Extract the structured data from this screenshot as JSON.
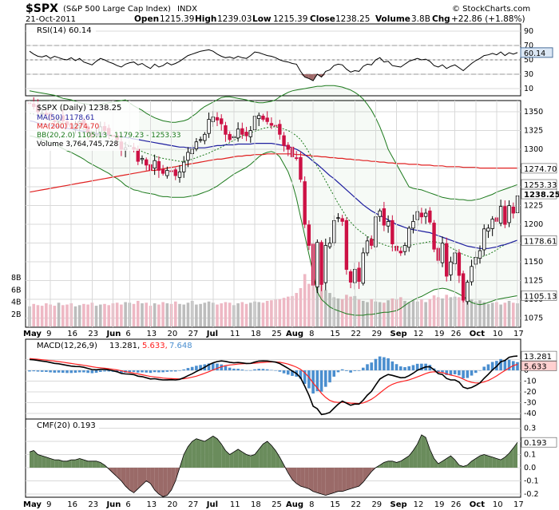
{
  "header": {
    "symbol": "$SPX",
    "name": "(S&P 500 Large Cap Index)",
    "exchange": "INDX",
    "date": "21-Oct-2011",
    "open_label": "Open",
    "open": "1215.39",
    "high_label": "High",
    "high": "1239.03",
    "low_label": "Low",
    "low": "1215.39",
    "close_label": "Close",
    "close": "1238.25",
    "volume_label": "Volume",
    "volume": "3.8B",
    "chg_label": "Chg",
    "chg": "+22.86 (+1.88%)",
    "copyright": "© StockCharts.com"
  },
  "colors": {
    "up": "#000000",
    "down": "#cc1144",
    "ma50": "#1f1fa0",
    "ma200": "#e02020",
    "bb": "#1d7a1d",
    "macd": "#000000",
    "signal": "#ff2020",
    "hist": "#4a8ecf",
    "cmf_pos": "#6a8c5c",
    "cmf_neg": "#9a6a68",
    "vol_up": "#bdbdbd",
    "vol_down": "#eeb8c4",
    "rsi_line": "#000000",
    "rsi_label_bg": "#dce8f5"
  },
  "rsi": {
    "legend": "RSI(14) 60.14",
    "value_label": "60.14",
    "value": 60.14,
    "ticks": [
      "90",
      "70",
      "50",
      "30",
      "10"
    ]
  },
  "price": {
    "legend_title": "$SPX (Daily) 1238.25",
    "legend_ma50": "MA(50) 1178.61",
    "legend_ma200": "MA(200) 1274.70",
    "legend_bb": "BB(20,2.0) 1105.13 - 1179.23 - 1253.33",
    "legend_volume": "Volume 3,764,745,728",
    "ticks": [
      "1350",
      "1325",
      "1300",
      "1275",
      "1250",
      "1225",
      "1200",
      "1175",
      "1150",
      "1125",
      "1100",
      "1075"
    ],
    "volume_ticks": [
      "8B",
      "6B",
      "4B",
      "2B"
    ],
    "labels": {
      "bb_upper": "1253.33",
      "ma200": "1274.70",
      "close": "1238.25",
      "ma50": "1178.61",
      "bb_lower": "1105.13"
    }
  },
  "macd": {
    "legend_name": "MACD(12,26,9)",
    "legend_macd": "13.281,",
    "legend_signal": "5.633,",
    "legend_hist": "7.648",
    "value_label": "13.281",
    "signal_label": "5.633",
    "ticks": [
      "10",
      "0",
      "-10",
      "-20",
      "-30",
      "-40"
    ]
  },
  "cmf": {
    "legend": "CMF(20) 0.193",
    "value_label": "0.193",
    "ticks": [
      "0.3",
      "0.2",
      "0.1",
      "0.0",
      "-0.1",
      "-0.2"
    ]
  },
  "x_axis": [
    {
      "label": "May",
      "bold": true
    },
    {
      "label": "9"
    },
    {
      "label": "16"
    },
    {
      "label": "23"
    },
    {
      "label": "Jun",
      "bold": true
    },
    {
      "label": "6"
    },
    {
      "label": "13"
    },
    {
      "label": "20"
    },
    {
      "label": "27"
    },
    {
      "label": "Jul",
      "bold": true
    },
    {
      "label": "11"
    },
    {
      "label": "18"
    },
    {
      "label": "25"
    },
    {
      "label": "Aug",
      "bold": true
    },
    {
      "label": "8"
    },
    {
      "label": "15"
    },
    {
      "label": "22"
    },
    {
      "label": "29"
    },
    {
      "label": "Sep",
      "bold": true
    },
    {
      "label": "12"
    },
    {
      "label": "19"
    },
    {
      "label": "26"
    },
    {
      "label": "Oct",
      "bold": true
    },
    {
      "label": "10"
    },
    {
      "label": "17"
    }
  ],
  "chart_data": {
    "type": "candlestick",
    "title": "$SPX (S&P 500 Large Cap Index) Daily",
    "date_range": "May 2011 - 21-Oct-2011",
    "ylim": [
      1063,
      1365
    ],
    "closes": [
      1361,
      1357,
      1350,
      1348,
      1346,
      1340,
      1337,
      1342,
      1338,
      1333,
      1330,
      1332,
      1337,
      1333,
      1322,
      1316,
      1320,
      1330,
      1325,
      1320,
      1317,
      1313,
      1300,
      1302,
      1305,
      1300,
      1284,
      1288,
      1279,
      1272,
      1285,
      1272,
      1268,
      1272,
      1271,
      1265,
      1270,
      1283,
      1296,
      1300,
      1310,
      1313,
      1320,
      1340,
      1343,
      1339,
      1334,
      1320,
      1313,
      1317,
      1327,
      1320,
      1318,
      1325,
      1344,
      1345,
      1340,
      1337,
      1332,
      1331,
      1320,
      1305,
      1300,
      1290,
      1288,
      1260,
      1200,
      1172,
      1119,
      1176,
      1120,
      1172,
      1175,
      1205,
      1209,
      1204,
      1140,
      1123,
      1140,
      1124,
      1162,
      1178,
      1172,
      1210,
      1218,
      1199,
      1204,
      1174,
      1165,
      1162,
      1172,
      1195,
      1204,
      1217,
      1210,
      1215,
      1203,
      1167,
      1152,
      1175,
      1131,
      1150,
      1162,
      1132,
      1099,
      1123,
      1144,
      1156,
      1165,
      1194,
      1195,
      1207,
      1204,
      1224,
      1200,
      1225,
      1215,
      1238
    ],
    "ma50": [
      1338,
      1337,
      1335,
      1334,
      1333,
      1332,
      1331,
      1330,
      1329,
      1328,
      1327,
      1326,
      1325,
      1324,
      1323,
      1322,
      1321,
      1321,
      1320,
      1319,
      1318,
      1318,
      1317,
      1316,
      1315,
      1314,
      1313,
      1312,
      1311,
      1310,
      1309,
      1308,
      1307,
      1306,
      1305,
      1304,
      1303,
      1303,
      1302,
      1302,
      1302,
      1302,
      1302,
      1303,
      1304,
      1305,
      1305,
      1306,
      1306,
      1306,
      1307,
      1307,
      1307,
      1307,
      1308,
      1308,
      1308,
      1308,
      1308,
      1307,
      1306,
      1305,
      1304,
      1302,
      1300,
      1297,
      1293,
      1289,
      1284,
      1280,
      1275,
      1270,
      1265,
      1261,
      1256,
      1251,
      1246,
      1241,
      1236,
      1231,
      1226,
      1222,
      1218,
      1215,
      1212,
      1209,
      1206,
      1203,
      1200,
      1198,
      1196,
      1194,
      1193,
      1192,
      1191,
      1190,
      1189,
      1187,
      1185,
      1183,
      1181,
      1179,
      1177,
      1175,
      1173,
      1171,
      1170,
      1169,
      1168,
      1168,
      1168,
      1169,
      1170,
      1172,
      1173,
      1175,
      1177,
      1179
    ],
    "ma200": [
      1243,
      1244,
      1245,
      1246,
      1247,
      1248,
      1249,
      1250,
      1251,
      1252,
      1253,
      1254,
      1255,
      1256,
      1257,
      1258,
      1259,
      1260,
      1261,
      1262,
      1263,
      1264,
      1265,
      1266,
      1267,
      1268,
      1269,
      1270,
      1271,
      1272,
      1272,
      1273,
      1274,
      1275,
      1276,
      1277,
      1278,
      1279,
      1280,
      1281,
      1282,
      1283,
      1284,
      1285,
      1286,
      1287,
      1287,
      1288,
      1289,
      1290,
      1291,
      1291,
      1292,
      1292,
      1293,
      1293,
      1293,
      1294,
      1294,
      1294,
      1294,
      1294,
      1294,
      1294,
      1293,
      1293,
      1292,
      1292,
      1291,
      1291,
      1290,
      1290,
      1289,
      1289,
      1288,
      1288,
      1287,
      1287,
      1286,
      1286,
      1285,
      1285,
      1284,
      1284,
      1283,
      1283,
      1282,
      1282,
      1281,
      1281,
      1281,
      1280,
      1280,
      1280,
      1279,
      1279,
      1279,
      1278,
      1278,
      1278,
      1277,
      1277,
      1277,
      1277,
      1276,
      1276,
      1276,
      1276,
      1275,
      1275,
      1275,
      1275,
      1275,
      1275,
      1275,
      1275,
      1275,
      1275
    ],
    "bb_upper": [
      1378,
      1377,
      1376,
      1375,
      1374,
      1373,
      1372,
      1370,
      1368,
      1367,
      1366,
      1364,
      1362,
      1361,
      1360,
      1359,
      1359,
      1360,
      1361,
      1362,
      1363,
      1364,
      1365,
      1366,
      1362,
      1358,
      1355,
      1352,
      1348,
      1345,
      1342,
      1340,
      1338,
      1337,
      1336,
      1336,
      1337,
      1338,
      1340,
      1344,
      1348,
      1353,
      1357,
      1360,
      1363,
      1366,
      1369,
      1370,
      1370,
      1369,
      1368,
      1367,
      1366,
      1364,
      1363,
      1362,
      1362,
      1363,
      1364,
      1366,
      1370,
      1373,
      1376,
      1378,
      1379,
      1380,
      1381,
      1382,
      1383,
      1384,
      1384,
      1385,
      1385,
      1385,
      1384,
      1383,
      1381,
      1379,
      1376,
      1372,
      1367,
      1360,
      1352,
      1342,
      1330,
      1316,
      1300,
      1290,
      1280,
      1270,
      1260,
      1250,
      1248,
      1247,
      1246,
      1244,
      1242,
      1240,
      1238,
      1236,
      1235,
      1234,
      1234,
      1233,
      1233,
      1232,
      1232,
      1233,
      1234,
      1236,
      1238,
      1240,
      1243,
      1245,
      1247,
      1249,
      1251,
      1253
    ],
    "bb_middle": [
      1348,
      1347,
      1345,
      1343,
      1341,
      1339,
      1337,
      1336,
      1335,
      1333,
      1332,
      1330,
      1329,
      1327,
      1325,
      1323,
      1321,
      1319,
      1317,
      1315,
      1313,
      1311,
      1309,
      1307,
      1305,
      1302,
      1300,
      1297,
      1295,
      1293,
      1291,
      1289,
      1288,
      1287,
      1286,
      1285,
      1284,
      1284,
      1285,
      1287,
      1289,
      1291,
      1293,
      1295,
      1298,
      1300,
      1303,
      1306,
      1309,
      1312,
      1315,
      1318,
      1320,
      1322,
      1324,
      1326,
      1328,
      1329,
      1330,
      1330,
      1329,
      1327,
      1325,
      1322,
      1318,
      1313,
      1305,
      1296,
      1287,
      1277,
      1268,
      1258,
      1248,
      1238,
      1228,
      1219,
      1210,
      1203,
      1197,
      1192,
      1188,
      1184,
      1181,
      1178,
      1175,
      1173,
      1171,
      1170,
      1170,
      1170,
      1171,
      1172,
      1173,
      1174,
      1175,
      1176,
      1177,
      1177,
      1176,
      1174,
      1172,
      1169,
      1166,
      1163,
      1160,
      1158,
      1156,
      1155,
      1156,
      1158,
      1160,
      1163,
      1166,
      1170,
      1173,
      1175,
      1177,
      1179
    ],
    "bb_lower": [
      1318,
      1317,
      1315,
      1313,
      1311,
      1309,
      1306,
      1304,
      1301,
      1298,
      1296,
      1293,
      1290,
      1287,
      1283,
      1280,
      1277,
      1274,
      1271,
      1268,
      1264,
      1261,
      1257,
      1252,
      1249,
      1246,
      1245,
      1243,
      1242,
      1241,
      1240,
      1238,
      1237,
      1237,
      1236,
      1236,
      1236,
      1236,
      1237,
      1238,
      1239,
      1241,
      1243,
      1245,
      1248,
      1251,
      1255,
      1259,
      1263,
      1267,
      1270,
      1273,
      1276,
      1280,
      1285,
      1290,
      1294,
      1296,
      1297,
      1295,
      1290,
      1280,
      1270,
      1255,
      1235,
      1210,
      1185,
      1160,
      1135,
      1110,
      1100,
      1095,
      1090,
      1087,
      1085,
      1083,
      1081,
      1080,
      1079,
      1079,
      1079,
      1080,
      1080,
      1081,
      1082,
      1083,
      1083,
      1084,
      1085,
      1088,
      1092,
      1096,
      1099,
      1102,
      1104,
      1107,
      1110,
      1113,
      1114,
      1115,
      1114,
      1112,
      1110,
      1107,
      1104,
      1100,
      1096,
      1094,
      1093,
      1094,
      1096,
      1098,
      1100,
      1101,
      1102,
      1103,
      1104,
      1105
    ],
    "volume_billions": [
      3.3,
      3.7,
      3.5,
      3.4,
      3.8,
      3.6,
      3.4,
      3.9,
      3.5,
      3.6,
      3.8,
      3.3,
      3.5,
      3.7,
      3.6,
      3.9,
      3.4,
      3.6,
      3.7,
      3.5,
      3.8,
      3.9,
      3.6,
      4.0,
      3.9,
      3.7,
      4.2,
      3.8,
      3.9,
      3.4,
      3.8,
      3.6,
      4.0,
      3.8,
      3.7,
      4.1,
      3.7,
      3.6,
      3.9,
      4.2,
      3.6,
      3.7,
      3.9,
      4.1,
      3.9,
      3.6,
      3.8,
      4.0,
      3.9,
      3.5,
      3.8,
      4.0,
      3.7,
      3.9,
      4.1,
      4.0,
      3.9,
      4.2,
      4.3,
      4.4,
      4.5,
      4.7,
      4.9,
      5.0,
      5.5,
      6.3,
      8.6,
      7.0,
      7.6,
      8.0,
      7.2,
      6.0,
      5.5,
      4.8,
      4.6,
      4.5,
      5.2,
      4.9,
      5.0,
      4.4,
      4.2,
      4.0,
      4.5,
      4.1,
      4.0,
      3.9,
      4.3,
      4.6,
      4.4,
      4.8,
      4.2,
      4.0,
      4.3,
      4.1,
      4.4,
      4.0,
      4.5,
      5.1,
      4.8,
      4.6,
      5.2,
      4.8,
      4.9,
      4.8,
      6.0,
      4.9,
      4.4,
      4.1,
      4.3,
      4.0,
      3.7,
      3.9,
      4.0,
      3.6,
      3.9,
      4.2,
      3.9,
      3.8
    ],
    "rsi": [
      62,
      58,
      55,
      54,
      56,
      52,
      55,
      53,
      51,
      50,
      53,
      49,
      52,
      47,
      45,
      43,
      48,
      52,
      50,
      47,
      45,
      42,
      40,
      44,
      46,
      47,
      43,
      45,
      41,
      38,
      44,
      40,
      42,
      46,
      43,
      45,
      48,
      52,
      56,
      58,
      60,
      62,
      63,
      64,
      62,
      58,
      55,
      53,
      54,
      52,
      55,
      53,
      52,
      56,
      61,
      60,
      58,
      56,
      55,
      53,
      50,
      48,
      47,
      45,
      44,
      34,
      26,
      24,
      21,
      30,
      26,
      34,
      36,
      42,
      44,
      43,
      37,
      33,
      35,
      34,
      41,
      44,
      43,
      50,
      53,
      47,
      48,
      42,
      41,
      40,
      44,
      48,
      50,
      52,
      50,
      51,
      48,
      42,
      40,
      43,
      38,
      41,
      43,
      39,
      35,
      40,
      45,
      49,
      52,
      56,
      57,
      59,
      57,
      61,
      56,
      60,
      58,
      60.14
    ],
    "macd": [
      10,
      9.8,
      9.2,
      8.6,
      8.1,
      7.3,
      6.5,
      6.1,
      5.4,
      4.6,
      4.0,
      3.6,
      3.5,
      2.9,
      1.8,
      0.8,
      0.6,
      1.0,
      1.0,
      0.5,
      -0.3,
      -1.3,
      -2.8,
      -3.3,
      -3.4,
      -3.9,
      -5.3,
      -5.8,
      -6.8,
      -7.9,
      -7.7,
      -8.4,
      -8.8,
      -8.7,
      -8.6,
      -8.8,
      -8.3,
      -6.8,
      -4.9,
      -3.1,
      -1.0,
      0.9,
      2.9,
      5.2,
      7.0,
      8.2,
      8.8,
      8.3,
      7.5,
      7.0,
      7.3,
      6.9,
      6.4,
      6.5,
      7.7,
      8.6,
      8.8,
      8.7,
      8.2,
      7.7,
      6.3,
      4.1,
      1.9,
      -0.6,
      -2.8,
      -6.8,
      -14.7,
      -23.0,
      -33.1,
      -35.5,
      -40.9,
      -40.2,
      -38.9,
      -35.0,
      -31.3,
      -28.4,
      -30.3,
      -32.3,
      -31.1,
      -31.2,
      -27.6,
      -22.9,
      -19.4,
      -13.5,
      -8.0,
      -5.6,
      -3.8,
      -4.6,
      -5.7,
      -6.8,
      -6.7,
      -4.9,
      -2.6,
      0.1,
      1.7,
      3.2,
      3.4,
      0.5,
      -3.0,
      -3.8,
      -7.5,
      -8.8,
      -8.8,
      -10.9,
      -15.5,
      -16.8,
      -15.8,
      -13.9,
      -11.6,
      -7.3,
      -3.7,
      0.5,
      3.7,
      8.0,
      9.2,
      12.2,
      13.0,
      13.28
    ],
    "macd_signal": [
      11,
      10.6,
      10.3,
      9.9,
      9.5,
      9.1,
      8.6,
      8.1,
      7.6,
      7.0,
      6.4,
      5.8,
      5.3,
      4.7,
      4.1,
      3.4,
      2.8,
      2.4,
      2.0,
      1.5,
      1.0,
      0.4,
      -0.4,
      -1.2,
      -1.8,
      -2.5,
      -3.3,
      -4.0,
      -4.8,
      -5.6,
      -6.1,
      -6.6,
      -7.1,
      -7.4,
      -7.6,
      -7.8,
      -7.9,
      -7.7,
      -7.1,
      -6.3,
      -5.3,
      -4.1,
      -2.7,
      -1.2,
      0.4,
      1.9,
      3.3,
      4.4,
      5.0,
      5.4,
      5.8,
      6.1,
      6.3,
      6.4,
      6.7,
      7.1,
      7.4,
      7.7,
      7.8,
      7.8,
      7.5,
      6.8,
      5.8,
      4.5,
      3.0,
      1.0,
      -2.2,
      -6.4,
      -11.7,
      -16.3,
      -21.2,
      -25.0,
      -27.8,
      -29.2,
      -29.6,
      -29.4,
      -29.7,
      -30.3,
      -30.5,
      -30.7,
      -30.1,
      -28.6,
      -26.7,
      -24.1,
      -20.9,
      -17.8,
      -15.0,
      -12.9,
      -11.5,
      -10.5,
      -9.7,
      -8.7,
      -7.5,
      -6.0,
      -4.5,
      -3.0,
      -1.7,
      -1.3,
      -1.6,
      -2.1,
      -3.2,
      -4.3,
      -5.2,
      -6.3,
      -8.1,
      -9.8,
      -11.0,
      -11.6,
      -11.6,
      -10.7,
      -9.3,
      -7.3,
      -5.1,
      -2.5,
      -0.2,
      2.3,
      4.4,
      5.63
    ],
    "cmf": [
      0.12,
      0.13,
      0.1,
      0.09,
      0.08,
      0.07,
      0.06,
      0.06,
      0.05,
      0.05,
      0.06,
      0.06,
      0.07,
      0.06,
      0.05,
      0.05,
      0.05,
      0.04,
      0.02,
      -0.01,
      -0.04,
      -0.07,
      -0.1,
      -0.14,
      -0.17,
      -0.19,
      -0.16,
      -0.13,
      -0.1,
      -0.12,
      -0.17,
      -0.2,
      -0.22,
      -0.21,
      -0.17,
      -0.1,
      0.0,
      0.1,
      0.16,
      0.2,
      0.22,
      0.21,
      0.2,
      0.22,
      0.24,
      0.22,
      0.18,
      0.13,
      0.1,
      0.12,
      0.14,
      0.12,
      0.1,
      0.09,
      0.1,
      0.14,
      0.18,
      0.2,
      0.17,
      0.13,
      0.08,
      0.02,
      -0.04,
      -0.09,
      -0.12,
      -0.14,
      -0.15,
      -0.16,
      -0.18,
      -0.19,
      -0.2,
      -0.21,
      -0.2,
      -0.19,
      -0.18,
      -0.18,
      -0.17,
      -0.16,
      -0.15,
      -0.14,
      -0.11,
      -0.07,
      -0.03,
      0.0,
      0.02,
      0.04,
      0.05,
      0.05,
      0.04,
      0.05,
      0.07,
      0.09,
      0.13,
      0.18,
      0.25,
      0.23,
      0.14,
      0.07,
      0.03,
      0.05,
      0.07,
      0.09,
      0.06,
      0.02,
      0.01,
      0.02,
      0.05,
      0.07,
      0.09,
      0.1,
      0.09,
      0.08,
      0.07,
      0.06,
      0.08,
      0.11,
      0.15,
      0.193
    ]
  }
}
